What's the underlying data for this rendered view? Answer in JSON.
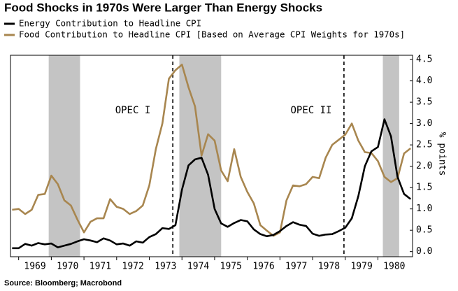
{
  "chart_data": {
    "type": "line",
    "title": "Food Shocks in 1970s Were Larger Than Energy Shocks",
    "y_axis_label": "% points",
    "source": "Source: Bloomberg; Macrobond",
    "annotations": [
      "OPEC I",
      "OPEC II"
    ],
    "x": [
      1968.8,
      1969.0,
      1969.2,
      1969.4,
      1969.6,
      1969.8,
      1970.0,
      1970.2,
      1970.4,
      1970.6,
      1970.8,
      1971.0,
      1971.2,
      1971.4,
      1971.6,
      1971.8,
      1972.0,
      1972.2,
      1972.4,
      1972.6,
      1972.8,
      1973.0,
      1973.2,
      1973.4,
      1973.6,
      1973.8,
      1974.0,
      1974.2,
      1974.4,
      1974.6,
      1974.8,
      1975.0,
      1975.2,
      1975.4,
      1975.6,
      1975.8,
      1976.0,
      1976.2,
      1976.4,
      1976.6,
      1976.8,
      1977.0,
      1977.2,
      1977.4,
      1977.6,
      1977.8,
      1978.0,
      1978.2,
      1978.4,
      1978.6,
      1978.8,
      1979.0,
      1979.2,
      1979.4,
      1979.6,
      1979.8,
      1980.0,
      1980.2,
      1980.4,
      1980.6,
      1980.8,
      1981.0
    ],
    "series": [
      {
        "name": "Energy Contribution to Headline CPI",
        "color": "#000000",
        "values": [
          0.08,
          0.08,
          0.18,
          0.14,
          0.2,
          0.17,
          0.19,
          0.1,
          0.14,
          0.18,
          0.24,
          0.29,
          0.26,
          0.22,
          0.31,
          0.26,
          0.17,
          0.19,
          0.14,
          0.24,
          0.21,
          0.34,
          0.41,
          0.55,
          0.53,
          0.62,
          1.45,
          2.02,
          2.16,
          2.2,
          1.8,
          1.0,
          0.66,
          0.58,
          0.67,
          0.74,
          0.71,
          0.52,
          0.41,
          0.36,
          0.39,
          0.48,
          0.6,
          0.69,
          0.63,
          0.6,
          0.42,
          0.37,
          0.4,
          0.41,
          0.48,
          0.56,
          0.78,
          1.3,
          2.0,
          2.35,
          2.45,
          3.1,
          2.7,
          1.75,
          1.35,
          1.23
        ]
      },
      {
        "name": "Food Contribution to Headline CPI [Based on Average CPI Weights for 1970s]",
        "color": "#a8864f",
        "values": [
          0.98,
          1.0,
          0.88,
          0.98,
          1.33,
          1.35,
          1.78,
          1.58,
          1.2,
          1.08,
          0.75,
          0.45,
          0.7,
          0.78,
          0.78,
          1.23,
          1.05,
          1.0,
          0.88,
          0.95,
          1.08,
          1.55,
          2.4,
          3.0,
          4.05,
          4.25,
          4.38,
          3.85,
          3.4,
          2.25,
          2.75,
          2.6,
          1.9,
          1.65,
          2.4,
          1.75,
          1.4,
          1.13,
          0.62,
          0.49,
          0.37,
          0.45,
          1.2,
          1.55,
          1.53,
          1.58,
          1.75,
          1.72,
          2.2,
          2.5,
          2.62,
          2.74,
          3.0,
          2.6,
          2.33,
          2.31,
          2.12,
          1.75,
          1.63,
          1.72,
          2.3,
          2.42
        ]
      }
    ],
    "shaded": [
      [
        1969.92,
        1970.88
      ],
      [
        1973.92,
        1975.2
      ],
      [
        1980.15,
        1980.65
      ]
    ],
    "shade_color": "#c4c4c4",
    "vlines": [
      1973.72,
      1978.96
    ],
    "xlim": [
      1968.75,
      1981.06
    ],
    "xticks": [
      1969,
      1970,
      1971,
      1972,
      1973,
      1974,
      1975,
      1976,
      1977,
      1978,
      1979,
      1980
    ],
    "ylim": [
      -0.12,
      4.6
    ],
    "yticks": [
      {
        "value": 0,
        "label": "0.0"
      },
      0.5,
      {
        "value": 1,
        "label": "1.0"
      },
      1.5,
      {
        "value": 2,
        "label": "2.0"
      },
      2.5,
      {
        "value": 3,
        "label": "3.0"
      },
      3.5,
      {
        "value": 4,
        "label": "4.0"
      },
      4.5
    ]
  }
}
